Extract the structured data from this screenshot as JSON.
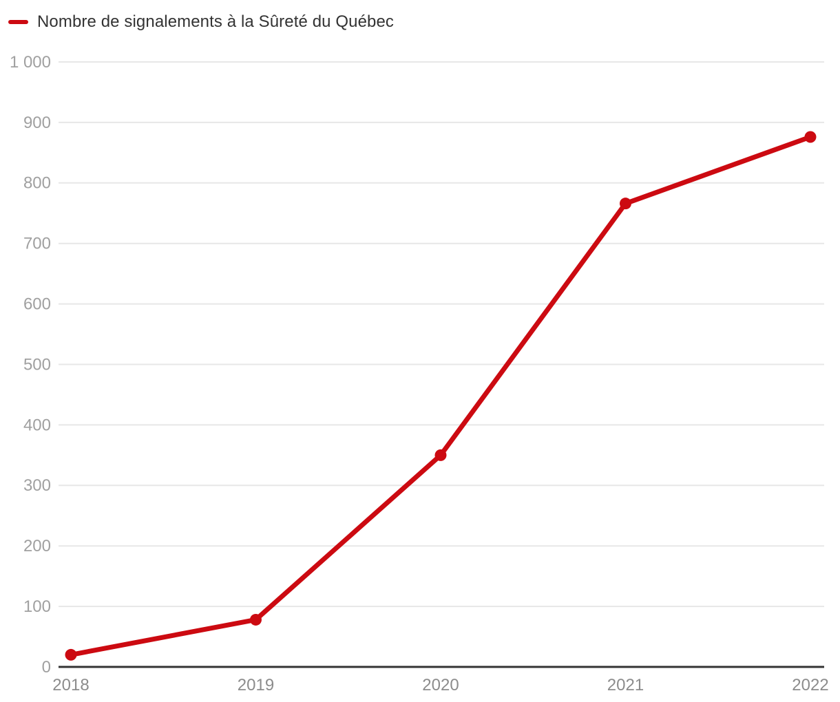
{
  "legend": {
    "label": "Nombre de signalements à la Sûreté du Québec"
  },
  "chart_data": {
    "type": "line",
    "categories": [
      "2018",
      "2019",
      "2020",
      "2021",
      "2022"
    ],
    "series": [
      {
        "name": "Nombre de signalements à la Sûreté du Québec",
        "values": [
          20,
          78,
          350,
          766,
          876
        ]
      }
    ],
    "ylim": [
      0,
      1000
    ],
    "yticks": [
      0,
      100,
      200,
      300,
      400,
      500,
      600,
      700,
      800,
      900,
      1000
    ],
    "ytick_labels": [
      "0",
      "100",
      "200",
      "300",
      "400",
      "500",
      "600",
      "700",
      "800",
      "900",
      "1 000"
    ],
    "xlabel": "",
    "ylabel": "",
    "grid": "horizontal",
    "legend_position": "top-left",
    "colors": {
      "line": "#cc0a11",
      "grid": "#e7e7e7",
      "axis": "#333333",
      "y_tick_labels": "#a0a0a0",
      "x_tick_labels": "#8c8c8c",
      "legend_text": "#333333"
    }
  }
}
